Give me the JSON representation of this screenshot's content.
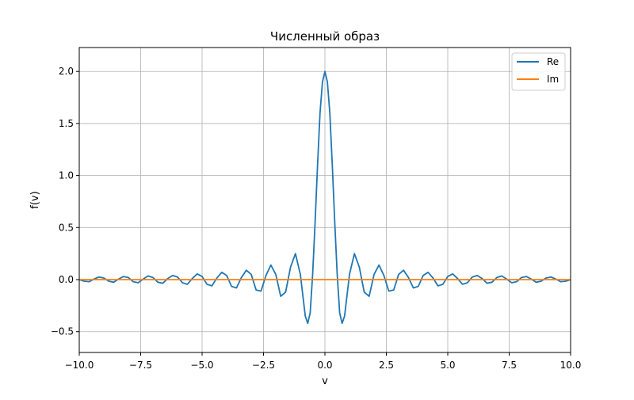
{
  "chart_data": {
    "type": "line",
    "title": "Численный образ",
    "xlabel": "v",
    "ylabel": "f(v)",
    "xlim": [
      -10,
      10
    ],
    "ylim": [
      -0.7,
      2.23
    ],
    "xticks": [
      -10,
      -7.5,
      -5,
      -2.5,
      0,
      2.5,
      5,
      7.5,
      10
    ],
    "xtick_labels": [
      "−10.0",
      "−7.5",
      "−5.0",
      "−2.5",
      "0.0",
      "2.5",
      "5.0",
      "7.5",
      "10.0"
    ],
    "yticks": [
      -0.5,
      0,
      0.5,
      1,
      1.5,
      2
    ],
    "ytick_labels": [
      "−0.5",
      "0.0",
      "0.5",
      "1.0",
      "1.5",
      "2.0"
    ],
    "grid": true,
    "legend_position": "top-right",
    "series": [
      {
        "name": "Re",
        "color": "#1f77b4",
        "x": [
          -10,
          -9.8,
          -9.6,
          -9.4,
          -9.2,
          -9.0,
          -8.8,
          -8.6,
          -8.4,
          -8.2,
          -8.0,
          -7.8,
          -7.6,
          -7.4,
          -7.2,
          -7.0,
          -6.8,
          -6.6,
          -6.4,
          -6.2,
          -6.0,
          -5.8,
          -5.6,
          -5.4,
          -5.2,
          -5.0,
          -4.8,
          -4.6,
          -4.4,
          -4.2,
          -4.0,
          -3.8,
          -3.6,
          -3.4,
          -3.2,
          -3.0,
          -2.8,
          -2.6,
          -2.4,
          -2.2,
          -2.0,
          -1.8,
          -1.6,
          -1.4,
          -1.2,
          -1.0,
          -0.8,
          -0.7,
          -0.6,
          -0.5,
          -0.4,
          -0.3,
          -0.2,
          -0.1,
          0,
          0.1,
          0.2,
          0.3,
          0.4,
          0.5,
          0.6,
          0.7,
          0.8,
          1.0,
          1.2,
          1.4,
          1.6,
          1.8,
          2.0,
          2.2,
          2.4,
          2.6,
          2.8,
          3.0,
          3.2,
          3.4,
          3.6,
          3.8,
          4.0,
          4.2,
          4.4,
          4.6,
          4.8,
          5.0,
          5.2,
          5.4,
          5.6,
          5.8,
          6.0,
          6.2,
          6.4,
          6.6,
          6.8,
          7.0,
          7.2,
          7.4,
          7.6,
          7.8,
          8.0,
          8.2,
          8.4,
          8.6,
          8.8,
          9.0,
          9.2,
          9.4,
          9.6,
          9.8,
          10
        ],
        "values": [
          0.0,
          -0.015,
          -0.02,
          0.005,
          0.025,
          0.015,
          -0.015,
          -0.025,
          0.005,
          0.03,
          0.02,
          -0.02,
          -0.03,
          0.005,
          0.035,
          0.02,
          -0.025,
          -0.035,
          0.01,
          0.04,
          0.025,
          -0.03,
          -0.045,
          0.01,
          0.055,
          0.03,
          -0.045,
          -0.06,
          0.015,
          0.07,
          0.04,
          -0.065,
          -0.08,
          0.02,
          0.09,
          0.05,
          -0.1,
          -0.11,
          0.04,
          0.14,
          0.05,
          -0.16,
          -0.12,
          0.12,
          0.25,
          0.05,
          -0.35,
          -0.42,
          -0.32,
          0.05,
          0.55,
          1.1,
          1.6,
          1.9,
          2.0,
          1.9,
          1.6,
          1.1,
          0.55,
          0.05,
          -0.32,
          -0.42,
          -0.35,
          0.05,
          0.25,
          0.12,
          -0.12,
          -0.16,
          0.05,
          0.14,
          0.04,
          -0.11,
          -0.1,
          0.05,
          0.09,
          0.02,
          -0.08,
          -0.065,
          0.04,
          0.07,
          0.015,
          -0.06,
          -0.045,
          0.03,
          0.055,
          0.01,
          -0.045,
          -0.03,
          0.025,
          0.04,
          0.01,
          -0.035,
          -0.025,
          0.02,
          0.035,
          0.005,
          -0.03,
          -0.02,
          0.02,
          0.03,
          0.005,
          -0.025,
          -0.015,
          0.015,
          0.025,
          0.005,
          -0.02,
          -0.015,
          0.0
        ]
      },
      {
        "name": "Im",
        "color": "#ff7f0e",
        "x": [
          -10,
          10
        ],
        "values": [
          0,
          0
        ]
      }
    ]
  }
}
